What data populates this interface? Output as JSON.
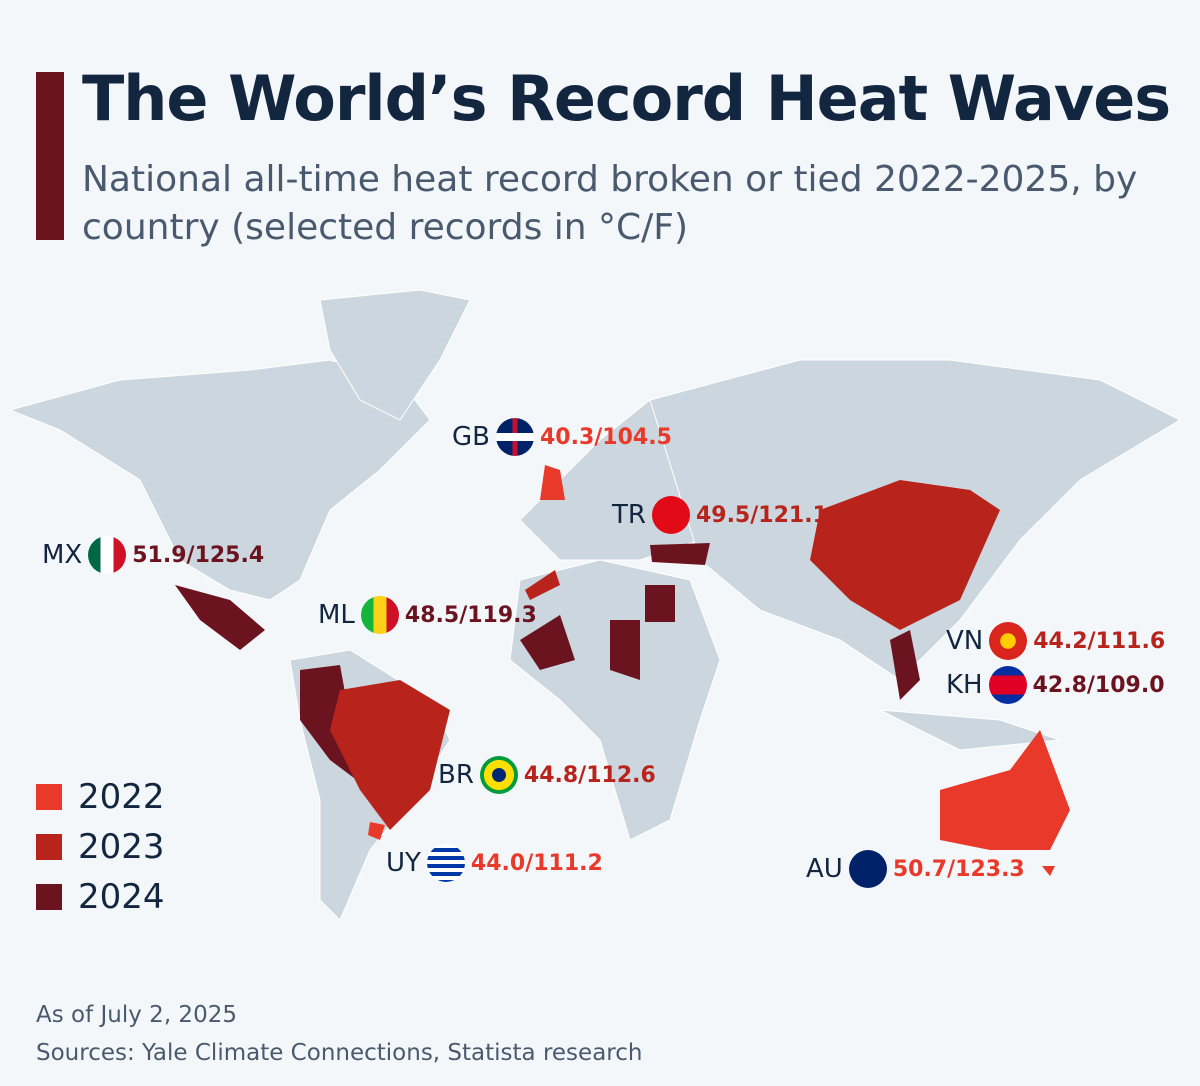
{
  "title": "The World’s Record Heat Waves",
  "subtitle": "National all-time heat record broken or tied 2022-2025, by country (selected records in °C/F)",
  "colors": {
    "2022": "#e8392a",
    "2023": "#b8241b",
    "2024": "#6b1420",
    "land": "#ccd6de",
    "background": "#f4f7fa"
  },
  "legend": [
    {
      "year": "2022",
      "color": "#e8392a"
    },
    {
      "year": "2023",
      "color": "#b8241b"
    },
    {
      "year": "2024",
      "color": "#6b1420"
    }
  ],
  "records": [
    {
      "code": "GB",
      "value": "40.3/104.5",
      "year": "2022",
      "flag": "uk-flag-icon"
    },
    {
      "code": "TR",
      "value": "49.5/121.1",
      "year": "2023",
      "flag": "turkey-flag-icon"
    },
    {
      "code": "MX",
      "value": "51.9/125.4",
      "year": "2024",
      "flag": "mexico-flag-icon"
    },
    {
      "code": "ML",
      "value": "48.5/119.3",
      "year": "2024",
      "flag": "mali-flag-icon"
    },
    {
      "code": "VN",
      "value": "44.2/111.6",
      "year": "2023",
      "flag": "vietnam-flag-icon"
    },
    {
      "code": "KH",
      "value": "42.8/109.0",
      "year": "2024",
      "flag": "cambodia-flag-icon"
    },
    {
      "code": "BR",
      "value": "44.8/112.6",
      "year": "2023",
      "flag": "brazil-flag-icon"
    },
    {
      "code": "UY",
      "value": "44.0/111.2",
      "year": "2022",
      "flag": "uruguay-flag-icon"
    },
    {
      "code": "AU",
      "value": "50.7/123.3",
      "year": "2022",
      "flag": "australia-flag-icon"
    }
  ],
  "footer": {
    "date": "As of July 2, 2025",
    "sources": "Sources: Yale Climate Connections, Statista research"
  }
}
